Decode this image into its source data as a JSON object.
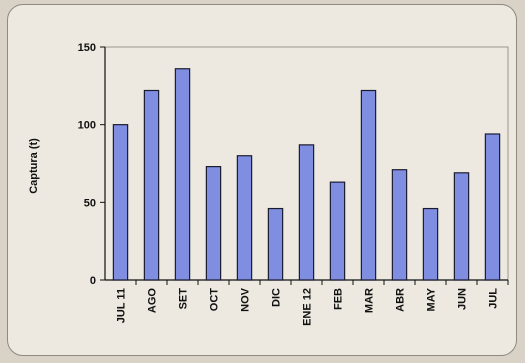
{
  "chart_data": {
    "type": "bar",
    "title": "",
    "xlabel": "",
    "ylabel": "Captura (t)",
    "ylim": [
      0,
      150
    ],
    "yticks": [
      0,
      50,
      100,
      150
    ],
    "grid": false,
    "bar_color": "#7f8ee0",
    "categories": [
      "JUL 11",
      "AGO",
      "SET",
      "OCT",
      "NOV",
      "DIC",
      "ENE 12",
      "FEB",
      "MAR",
      "ABR",
      "MAY",
      "JUN",
      "JUL"
    ],
    "values": [
      100,
      122,
      136,
      73,
      80,
      46,
      87,
      63,
      122,
      71,
      46,
      69,
      94
    ]
  }
}
